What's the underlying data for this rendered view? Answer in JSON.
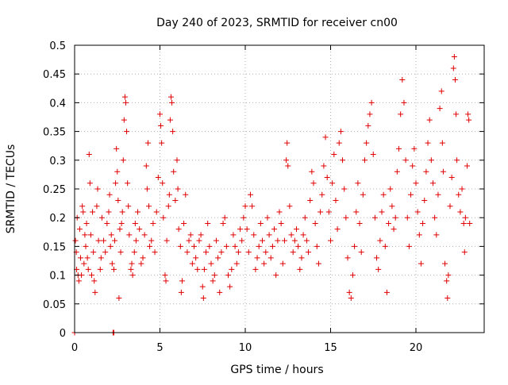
{
  "chart_data": {
    "type": "scatter",
    "title": "Day 240 of 2023, SRMTID for receiver cn00",
    "xlabel": "GPS time / hours",
    "ylabel": "SRMTID / TECUs",
    "xlim": [
      0,
      24
    ],
    "ylim": [
      0,
      0.5
    ],
    "x_ticks": [
      0,
      5,
      10,
      15,
      20
    ],
    "x_tick_labels": [
      "0",
      "5",
      "10",
      "15",
      "20"
    ],
    "y_ticks": [
      0,
      0.05,
      0.1,
      0.15,
      0.2,
      0.25,
      0.3,
      0.35,
      0.4,
      0.45,
      0.5
    ],
    "y_tick_labels": [
      "0",
      "0.05",
      "0.1",
      "0.15",
      "0.2",
      "0.25",
      "0.3",
      "0.35",
      "0.4",
      "0.45",
      "0.5"
    ],
    "grid": true,
    "marker": "+",
    "colors": {
      "series": "#e00000",
      "grid": "#b0b0b0"
    },
    "series": [
      {
        "name": "SRMTID",
        "points": [
          [
            0.0,
            0.0
          ],
          [
            2.25,
            0.0
          ],
          [
            2.3,
            0.0
          ],
          [
            0.05,
            0.16
          ],
          [
            0.1,
            0.14
          ],
          [
            0.12,
            0.11
          ],
          [
            0.15,
            0.2
          ],
          [
            0.2,
            0.1
          ],
          [
            0.25,
            0.09
          ],
          [
            0.3,
            0.18
          ],
          [
            0.35,
            0.13
          ],
          [
            0.4,
            0.1
          ],
          [
            0.45,
            0.22
          ],
          [
            0.5,
            0.21
          ],
          [
            0.55,
            0.12
          ],
          [
            0.6,
            0.17
          ],
          [
            0.65,
            0.15
          ],
          [
            0.7,
            0.19
          ],
          [
            0.75,
            0.13
          ],
          [
            0.8,
            0.11
          ],
          [
            0.85,
            0.31
          ],
          [
            0.9,
            0.26
          ],
          [
            0.95,
            0.17
          ],
          [
            1.0,
            0.1
          ],
          [
            1.05,
            0.21
          ],
          [
            1.1,
            0.14
          ],
          [
            1.15,
            0.09
          ],
          [
            1.2,
            0.07
          ],
          [
            1.3,
            0.22
          ],
          [
            1.35,
            0.25
          ],
          [
            1.4,
            0.16
          ],
          [
            1.5,
            0.11
          ],
          [
            1.55,
            0.13
          ],
          [
            1.6,
            0.2
          ],
          [
            1.7,
            0.16
          ],
          [
            1.8,
            0.14
          ],
          [
            1.9,
            0.19
          ],
          [
            2.0,
            0.21
          ],
          [
            2.05,
            0.24
          ],
          [
            2.1,
            0.15
          ],
          [
            2.15,
            0.17
          ],
          [
            2.2,
            0.12
          ],
          [
            2.3,
            0.11
          ],
          [
            2.35,
            0.16
          ],
          [
            2.4,
            0.26
          ],
          [
            2.45,
            0.32
          ],
          [
            2.5,
            0.28
          ],
          [
            2.55,
            0.23
          ],
          [
            2.6,
            0.06
          ],
          [
            2.65,
            0.18
          ],
          [
            2.7,
            0.14
          ],
          [
            2.75,
            0.19
          ],
          [
            2.8,
            0.21
          ],
          [
            2.85,
            0.3
          ],
          [
            2.9,
            0.37
          ],
          [
            2.95,
            0.41
          ],
          [
            3.0,
            0.4
          ],
          [
            3.05,
            0.35
          ],
          [
            3.1,
            0.26
          ],
          [
            3.15,
            0.22
          ],
          [
            3.2,
            0.17
          ],
          [
            3.3,
            0.11
          ],
          [
            3.35,
            0.12
          ],
          [
            3.4,
            0.1
          ],
          [
            3.5,
            0.14
          ],
          [
            3.55,
            0.19
          ],
          [
            3.6,
            0.16
          ],
          [
            3.7,
            0.21
          ],
          [
            3.8,
            0.18
          ],
          [
            3.9,
            0.12
          ],
          [
            4.0,
            0.13
          ],
          [
            4.1,
            0.17
          ],
          [
            4.2,
            0.29
          ],
          [
            4.25,
            0.25
          ],
          [
            4.3,
            0.33
          ],
          [
            4.35,
            0.22
          ],
          [
            4.4,
            0.15
          ],
          [
            4.5,
            0.16
          ],
          [
            4.6,
            0.19
          ],
          [
            4.7,
            0.14
          ],
          [
            4.8,
            0.21
          ],
          [
            4.9,
            0.27
          ],
          [
            5.0,
            0.38
          ],
          [
            5.05,
            0.36
          ],
          [
            5.1,
            0.33
          ],
          [
            5.15,
            0.26
          ],
          [
            5.2,
            0.2
          ],
          [
            5.3,
            0.1
          ],
          [
            5.35,
            0.09
          ],
          [
            5.4,
            0.16
          ],
          [
            5.5,
            0.22
          ],
          [
            5.55,
            0.24
          ],
          [
            5.6,
            0.37
          ],
          [
            5.65,
            0.41
          ],
          [
            5.7,
            0.4
          ],
          [
            5.75,
            0.35
          ],
          [
            5.8,
            0.28
          ],
          [
            5.9,
            0.23
          ],
          [
            6.0,
            0.3
          ],
          [
            6.05,
            0.25
          ],
          [
            6.1,
            0.18
          ],
          [
            6.2,
            0.15
          ],
          [
            6.25,
            0.07
          ],
          [
            6.3,
            0.09
          ],
          [
            6.4,
            0.19
          ],
          [
            6.5,
            0.24
          ],
          [
            6.6,
            0.14
          ],
          [
            6.7,
            0.16
          ],
          [
            6.8,
            0.17
          ],
          [
            6.9,
            0.12
          ],
          [
            7.0,
            0.15
          ],
          [
            7.1,
            0.13
          ],
          [
            7.2,
            0.11
          ],
          [
            7.3,
            0.16
          ],
          [
            7.4,
            0.17
          ],
          [
            7.5,
            0.08
          ],
          [
            7.55,
            0.06
          ],
          [
            7.6,
            0.11
          ],
          [
            7.7,
            0.14
          ],
          [
            7.8,
            0.19
          ],
          [
            7.9,
            0.15
          ],
          [
            8.0,
            0.12
          ],
          [
            8.1,
            0.09
          ],
          [
            8.2,
            0.1
          ],
          [
            8.3,
            0.16
          ],
          [
            8.4,
            0.13
          ],
          [
            8.5,
            0.07
          ],
          [
            8.6,
            0.14
          ],
          [
            8.7,
            0.19
          ],
          [
            8.8,
            0.2
          ],
          [
            8.9,
            0.15
          ],
          [
            9.0,
            0.1
          ],
          [
            9.1,
            0.08
          ],
          [
            9.2,
            0.11
          ],
          [
            9.3,
            0.17
          ],
          [
            9.4,
            0.15
          ],
          [
            9.5,
            0.12
          ],
          [
            9.6,
            0.14
          ],
          [
            9.7,
            0.18
          ],
          [
            9.8,
            0.16
          ],
          [
            9.9,
            0.2
          ],
          [
            10.0,
            0.22
          ],
          [
            10.1,
            0.18
          ],
          [
            10.2,
            0.14
          ],
          [
            10.3,
            0.24
          ],
          [
            10.4,
            0.22
          ],
          [
            10.5,
            0.17
          ],
          [
            10.6,
            0.11
          ],
          [
            10.7,
            0.13
          ],
          [
            10.8,
            0.15
          ],
          [
            10.9,
            0.19
          ],
          [
            11.0,
            0.16
          ],
          [
            11.1,
            0.12
          ],
          [
            11.2,
            0.14
          ],
          [
            11.3,
            0.2
          ],
          [
            11.4,
            0.17
          ],
          [
            11.5,
            0.13
          ],
          [
            11.6,
            0.15
          ],
          [
            11.7,
            0.18
          ],
          [
            11.8,
            0.1
          ],
          [
            11.9,
            0.16
          ],
          [
            12.0,
            0.21
          ],
          [
            12.1,
            0.19
          ],
          [
            12.2,
            0.12
          ],
          [
            12.3,
            0.16
          ],
          [
            12.4,
            0.3
          ],
          [
            12.45,
            0.33
          ],
          [
            12.5,
            0.29
          ],
          [
            12.6,
            0.22
          ],
          [
            12.7,
            0.17
          ],
          [
            12.8,
            0.14
          ],
          [
            12.9,
            0.16
          ],
          [
            13.0,
            0.18
          ],
          [
            13.1,
            0.15
          ],
          [
            13.2,
            0.11
          ],
          [
            13.3,
            0.13
          ],
          [
            13.4,
            0.17
          ],
          [
            13.5,
            0.2
          ],
          [
            13.6,
            0.16
          ],
          [
            13.7,
            0.14
          ],
          [
            13.8,
            0.23
          ],
          [
            13.9,
            0.28
          ],
          [
            14.0,
            0.26
          ],
          [
            14.1,
            0.19
          ],
          [
            14.2,
            0.15
          ],
          [
            14.3,
            0.12
          ],
          [
            14.4,
            0.21
          ],
          [
            14.5,
            0.24
          ],
          [
            14.6,
            0.29
          ],
          [
            14.7,
            0.34
          ],
          [
            14.8,
            0.27
          ],
          [
            14.9,
            0.21
          ],
          [
            15.0,
            0.16
          ],
          [
            15.1,
            0.26
          ],
          [
            15.2,
            0.31
          ],
          [
            15.3,
            0.23
          ],
          [
            15.4,
            0.18
          ],
          [
            15.5,
            0.33
          ],
          [
            15.6,
            0.35
          ],
          [
            15.7,
            0.3
          ],
          [
            15.8,
            0.25
          ],
          [
            15.9,
            0.2
          ],
          [
            16.0,
            0.13
          ],
          [
            16.1,
            0.07
          ],
          [
            16.2,
            0.06
          ],
          [
            16.3,
            0.1
          ],
          [
            16.4,
            0.15
          ],
          [
            16.5,
            0.21
          ],
          [
            16.6,
            0.26
          ],
          [
            16.7,
            0.19
          ],
          [
            16.8,
            0.14
          ],
          [
            16.9,
            0.24
          ],
          [
            17.0,
            0.3
          ],
          [
            17.1,
            0.33
          ],
          [
            17.2,
            0.36
          ],
          [
            17.3,
            0.38
          ],
          [
            17.4,
            0.4
          ],
          [
            17.5,
            0.31
          ],
          [
            17.6,
            0.2
          ],
          [
            17.7,
            0.13
          ],
          [
            17.8,
            0.11
          ],
          [
            17.9,
            0.16
          ],
          [
            18.0,
            0.21
          ],
          [
            18.1,
            0.24
          ],
          [
            18.2,
            0.15
          ],
          [
            18.3,
            0.07
          ],
          [
            18.4,
            0.19
          ],
          [
            18.5,
            0.25
          ],
          [
            18.6,
            0.22
          ],
          [
            18.7,
            0.18
          ],
          [
            18.8,
            0.2
          ],
          [
            18.9,
            0.28
          ],
          [
            19.0,
            0.32
          ],
          [
            19.1,
            0.38
          ],
          [
            19.2,
            0.44
          ],
          [
            19.3,
            0.4
          ],
          [
            19.4,
            0.3
          ],
          [
            19.5,
            0.2
          ],
          [
            19.6,
            0.15
          ],
          [
            19.7,
            0.24
          ],
          [
            19.8,
            0.29
          ],
          [
            19.9,
            0.32
          ],
          [
            20.0,
            0.26
          ],
          [
            20.1,
            0.21
          ],
          [
            20.2,
            0.17
          ],
          [
            20.3,
            0.12
          ],
          [
            20.4,
            0.19
          ],
          [
            20.5,
            0.23
          ],
          [
            20.6,
            0.28
          ],
          [
            20.7,
            0.33
          ],
          [
            20.8,
            0.37
          ],
          [
            20.9,
            0.3
          ],
          [
            21.0,
            0.26
          ],
          [
            21.1,
            0.2
          ],
          [
            21.2,
            0.17
          ],
          [
            21.3,
            0.24
          ],
          [
            21.4,
            0.39
          ],
          [
            21.5,
            0.42
          ],
          [
            21.55,
            0.33
          ],
          [
            21.6,
            0.28
          ],
          [
            21.7,
            0.12
          ],
          [
            21.8,
            0.09
          ],
          [
            21.85,
            0.06
          ],
          [
            21.9,
            0.1
          ],
          [
            22.0,
            0.22
          ],
          [
            22.1,
            0.27
          ],
          [
            22.2,
            0.46
          ],
          [
            22.25,
            0.48
          ],
          [
            22.3,
            0.44
          ],
          [
            22.35,
            0.38
          ],
          [
            22.4,
            0.3
          ],
          [
            22.5,
            0.24
          ],
          [
            22.6,
            0.21
          ],
          [
            22.7,
            0.25
          ],
          [
            22.8,
            0.19
          ],
          [
            22.85,
            0.14
          ],
          [
            22.9,
            0.2
          ],
          [
            23.0,
            0.29
          ],
          [
            23.05,
            0.38
          ],
          [
            23.1,
            0.37
          ],
          [
            23.15,
            0.19
          ]
        ]
      }
    ]
  }
}
